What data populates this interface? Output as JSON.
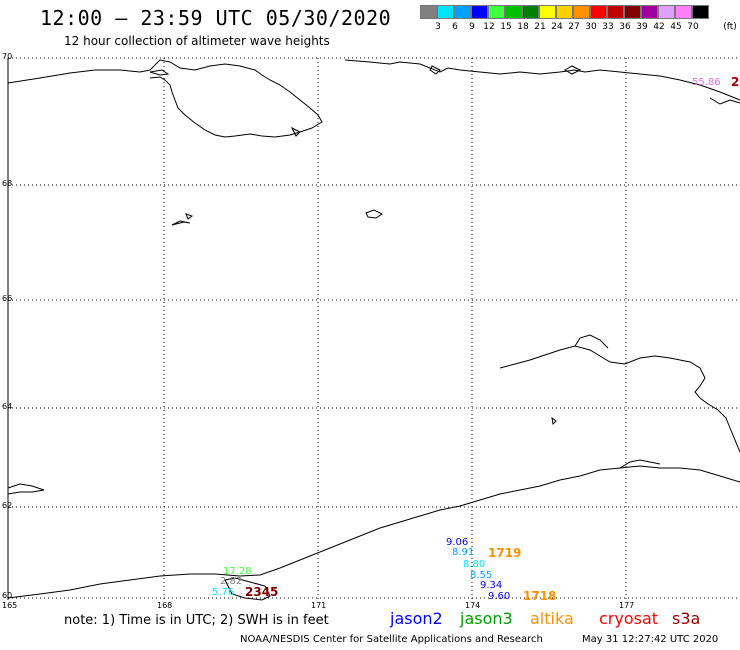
{
  "header": {
    "title": "12:00 – 23:59 UTC 05/30/2020",
    "subtitle": "12 hour collection of altimeter wave heights"
  },
  "legend": {
    "unit": "(ft)",
    "bins": [
      {
        "label": "3",
        "color": "#808080"
      },
      {
        "label": "6",
        "color": "#00e5ff"
      },
      {
        "label": "9",
        "color": "#00a0ff"
      },
      {
        "label": "12",
        "color": "#0000ff"
      },
      {
        "label": "15",
        "color": "#40ff40"
      },
      {
        "label": "18",
        "color": "#00c000"
      },
      {
        "label": "21",
        "color": "#008000"
      },
      {
        "label": "24",
        "color": "#ffff00"
      },
      {
        "label": "27",
        "color": "#ffd000"
      },
      {
        "label": "30",
        "color": "#ff9000"
      },
      {
        "label": "33",
        "color": "#ff0000"
      },
      {
        "label": "36",
        "color": "#c00000"
      },
      {
        "label": "39",
        "color": "#800000"
      },
      {
        "label": "42",
        "color": "#a000a0"
      },
      {
        "label": "45",
        "color": "#e0a0ff"
      },
      {
        "label": "70",
        "color": "#ff80ff"
      },
      {
        "label": "",
        "color": "#000000"
      }
    ]
  },
  "map": {
    "lat_labels": [
      "70",
      "68",
      "66",
      "64",
      "62",
      "60"
    ],
    "lon_labels": [
      "165",
      "168",
      "171",
      "174",
      "177"
    ],
    "observations": [
      {
        "text": "55.86",
        "color": "#e070e0"
      },
      {
        "text": "2",
        "color": "#a00000"
      },
      {
        "text": "9.06",
        "color": "#0000ff"
      },
      {
        "text": "8.91",
        "color": "#00a0ff"
      },
      {
        "text": "1719",
        "color": "#ff9000"
      },
      {
        "text": "8.80",
        "color": "#00e5ff"
      },
      {
        "text": "8.55",
        "color": "#00a0ff"
      },
      {
        "text": "9.34",
        "color": "#0000ff"
      },
      {
        "text": "9.60",
        "color": "#0000ff"
      },
      {
        "text": "1718",
        "color": "#ff9000"
      },
      {
        "text": "17.28",
        "color": "#40ff40"
      },
      {
        "text": "2.82",
        "color": "#808080"
      },
      {
        "text": "2345",
        "color": "#800000"
      },
      {
        "text": "5.76",
        "color": "#00e5ff"
      }
    ]
  },
  "footer": {
    "note": "note:  1) Time is in UTC;  2) SWH is in feet",
    "satellites": [
      {
        "name": "jason2",
        "color": "#0000ff"
      },
      {
        "name": "jason3",
        "color": "#00a000"
      },
      {
        "name": "altika",
        "color": "#ff9000"
      },
      {
        "name": "cryosat",
        "color": "#ff0000"
      },
      {
        "name": "s3a",
        "color": "#a00000"
      }
    ],
    "credit": "NOAA/NESDIS Center for Satellite Applications and Research",
    "timestamp": "May 31 12:27:42 UTC 2020"
  }
}
